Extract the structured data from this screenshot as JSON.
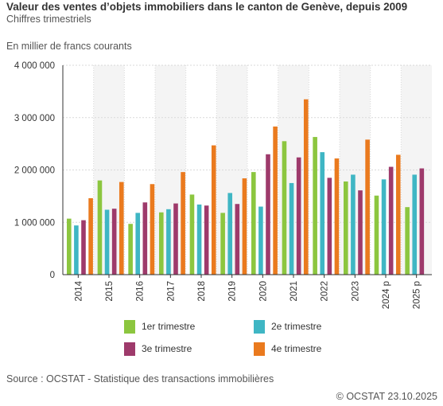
{
  "header": {
    "title": "Valeur des ventes d’objets immobiliers dans le canton de Genève, depuis 2009",
    "subtitle": "Chiffres trimestriels",
    "unit_label": "En millier de francs courants"
  },
  "footer": {
    "source": "Source : OCSTAT - Statistique des transactions immobilières",
    "copyright": "© OCSTAT 23.10.2025"
  },
  "colors": {
    "q1": "#8cc63f",
    "q2": "#3fb6c4",
    "q3": "#9e3a6b",
    "q4": "#ea7a1e",
    "band": "#f4f4f4",
    "grid": "#d9d9d9",
    "axis": "#333333"
  },
  "chart_data": {
    "type": "bar",
    "categories": [
      "2014",
      "2015",
      "2016",
      "2017",
      "2018",
      "2019",
      "2020",
      "2021",
      "2022",
      "2023",
      "2024 p",
      "2025 p"
    ],
    "y_ticks": [
      "0",
      "1 000 000",
      "2 000 000",
      "3 000 000",
      "4 000 000"
    ],
    "ylim": [
      0,
      4000000
    ],
    "grid": true,
    "legend_position": "bottom",
    "series": [
      {
        "name": "1er trimestre",
        "values": [
          1070000,
          1800000,
          970000,
          1190000,
          1530000,
          1180000,
          1960000,
          2550000,
          2630000,
          1780000,
          1510000,
          1290000
        ]
      },
      {
        "name": "2e trimestre",
        "values": [
          940000,
          1240000,
          1180000,
          1250000,
          1340000,
          1560000,
          1300000,
          1750000,
          2340000,
          1910000,
          1820000,
          1910000
        ]
      },
      {
        "name": "3e trimestre",
        "values": [
          1040000,
          1260000,
          1380000,
          1360000,
          1320000,
          1350000,
          2300000,
          2240000,
          1850000,
          1610000,
          2060000,
          2030000
        ]
      },
      {
        "name": "4e trimestre",
        "values": [
          1460000,
          1770000,
          1730000,
          1960000,
          2470000,
          1840000,
          2830000,
          3350000,
          2220000,
          2580000,
          2290000,
          null
        ]
      }
    ]
  }
}
